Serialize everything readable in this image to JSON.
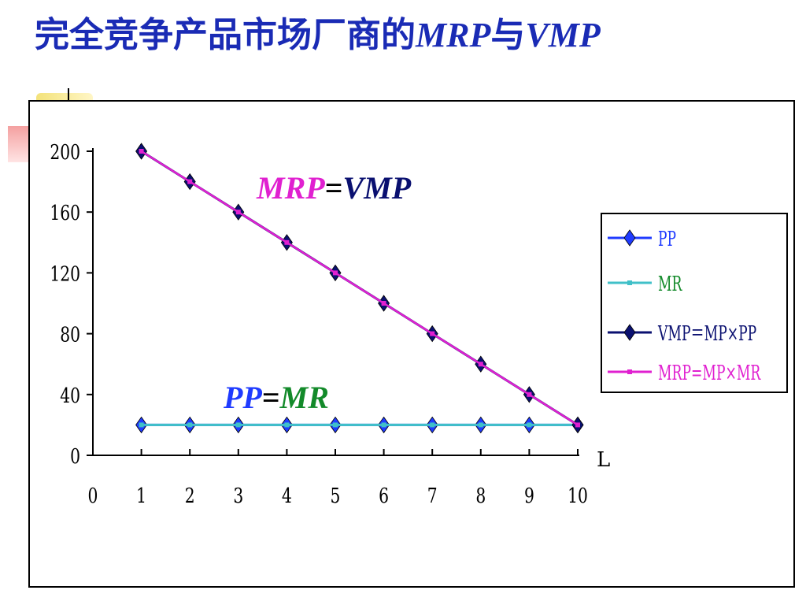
{
  "title": {
    "main": "完全竞争产品市场厂商的",
    "mrp": "MRP",
    "yu": "与",
    "vmp": "VMP"
  },
  "chart_data": {
    "type": "line",
    "title": "",
    "xlabel": "L",
    "ylabel": "",
    "xlim": [
      0,
      10
    ],
    "ylim": [
      0,
      200
    ],
    "x_ticks": [
      0,
      1,
      2,
      3,
      4,
      5,
      6,
      7,
      8,
      9,
      10
    ],
    "y_ticks": [
      0,
      40,
      80,
      120,
      160,
      200
    ],
    "x": [
      1,
      2,
      3,
      4,
      5,
      6,
      7,
      8,
      9,
      10
    ],
    "series": [
      {
        "name": "PP",
        "color": "#1f3bff",
        "marker": "diamond",
        "values": [
          20,
          20,
          20,
          20,
          20,
          20,
          20,
          20,
          20,
          20
        ]
      },
      {
        "name": "MR",
        "color": "#40c0c8",
        "marker": "square",
        "values": [
          20,
          20,
          20,
          20,
          20,
          20,
          20,
          20,
          20,
          20
        ]
      },
      {
        "name": "VMP＝MP×PP",
        "color": "#0a1070",
        "marker": "diamond",
        "values": [
          200,
          180,
          160,
          140,
          120,
          100,
          80,
          60,
          40,
          20
        ]
      },
      {
        "name": "MRP=MP×MR",
        "color": "#e020d0",
        "marker": "square",
        "values": [
          200,
          180,
          160,
          140,
          120,
          100,
          80,
          60,
          40,
          20
        ]
      }
    ],
    "grid": false,
    "legend": "right",
    "annotations": [
      {
        "parts": [
          {
            "text": "MRP",
            "color": "#e020d0"
          },
          {
            "text": "=",
            "color": "#000000"
          },
          {
            "text": "VMP",
            "color": "#0a1070"
          }
        ]
      },
      {
        "parts": [
          {
            "text": "PP",
            "color": "#1f3bff"
          },
          {
            "text": "=",
            "color": "#000000"
          },
          {
            "text": "MR",
            "color": "#138a2a"
          }
        ]
      }
    ]
  },
  "legend_text_colors": [
    "#1f3bff",
    "#138a2a",
    "#0a1070",
    "#e020d0"
  ]
}
